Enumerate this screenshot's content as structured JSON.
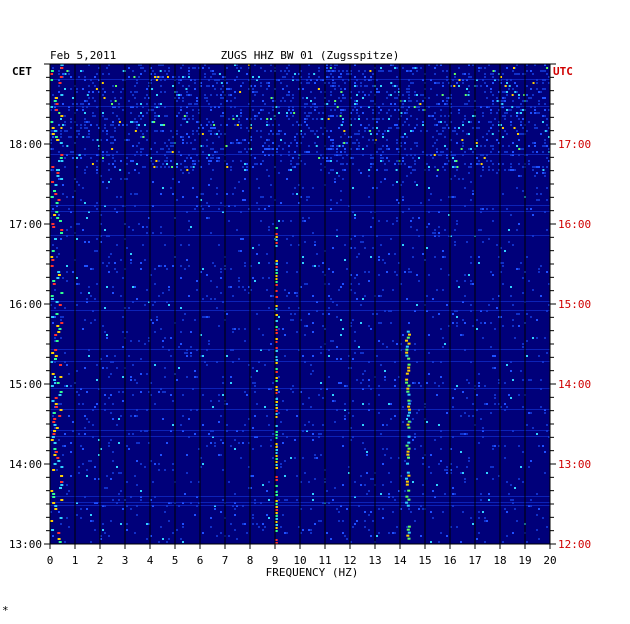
{
  "header": {
    "date": "Feb 5,2011",
    "station": "ZUGS HHZ BW 01 (Zugsspitze)"
  },
  "left_axis_label": "CET",
  "right_axis_label": "UTC",
  "footer_mark": "*",
  "colors": {
    "background": "#00007a",
    "left_time": "#000000",
    "right_time": "#d00000",
    "grid": "#000000"
  },
  "chart_data": {
    "type": "heatmap",
    "title": "ZUGS HHZ BW 01 (Zugsspitze)",
    "xlabel": "FREQUENCY (HZ)",
    "xlim": [
      0,
      20
    ],
    "x_ticks": [
      "0",
      "1",
      "2",
      "3",
      "4",
      "5",
      "6",
      "7",
      "8",
      "9",
      "10",
      "11",
      "12",
      "13",
      "14",
      "15",
      "16",
      "17",
      "18",
      "19",
      "20"
    ],
    "y_ticks_cet": [
      "18:00",
      "17:00",
      "16:00",
      "15:00",
      "14:00",
      "13:00"
    ],
    "y_ticks_utc": [
      "17:00",
      "16:00",
      "15:00",
      "14:00",
      "13:00",
      "12:00"
    ],
    "ylim_cet": [
      "13:00",
      "19:00"
    ],
    "grid": true,
    "features": [
      {
        "name": "low-frequency band",
        "freq_hz": [
          0,
          0.5
        ],
        "time_cet": [
          "13:00",
          "19:00"
        ],
        "intensity": "high"
      },
      {
        "name": "9 Hz line",
        "freq_hz": [
          9,
          9.1
        ],
        "time_cet": [
          "13:00",
          "17:00"
        ],
        "intensity": "high"
      },
      {
        "name": "14.3 Hz line",
        "freq_hz": [
          14.2,
          14.4
        ],
        "time_cet": [
          "13:00",
          "15:40"
        ],
        "intensity": "medium"
      },
      {
        "name": "broadband noise",
        "freq_hz": [
          0,
          20
        ],
        "time_cet": [
          "17:40",
          "19:00"
        ],
        "intensity": "medium"
      }
    ]
  }
}
